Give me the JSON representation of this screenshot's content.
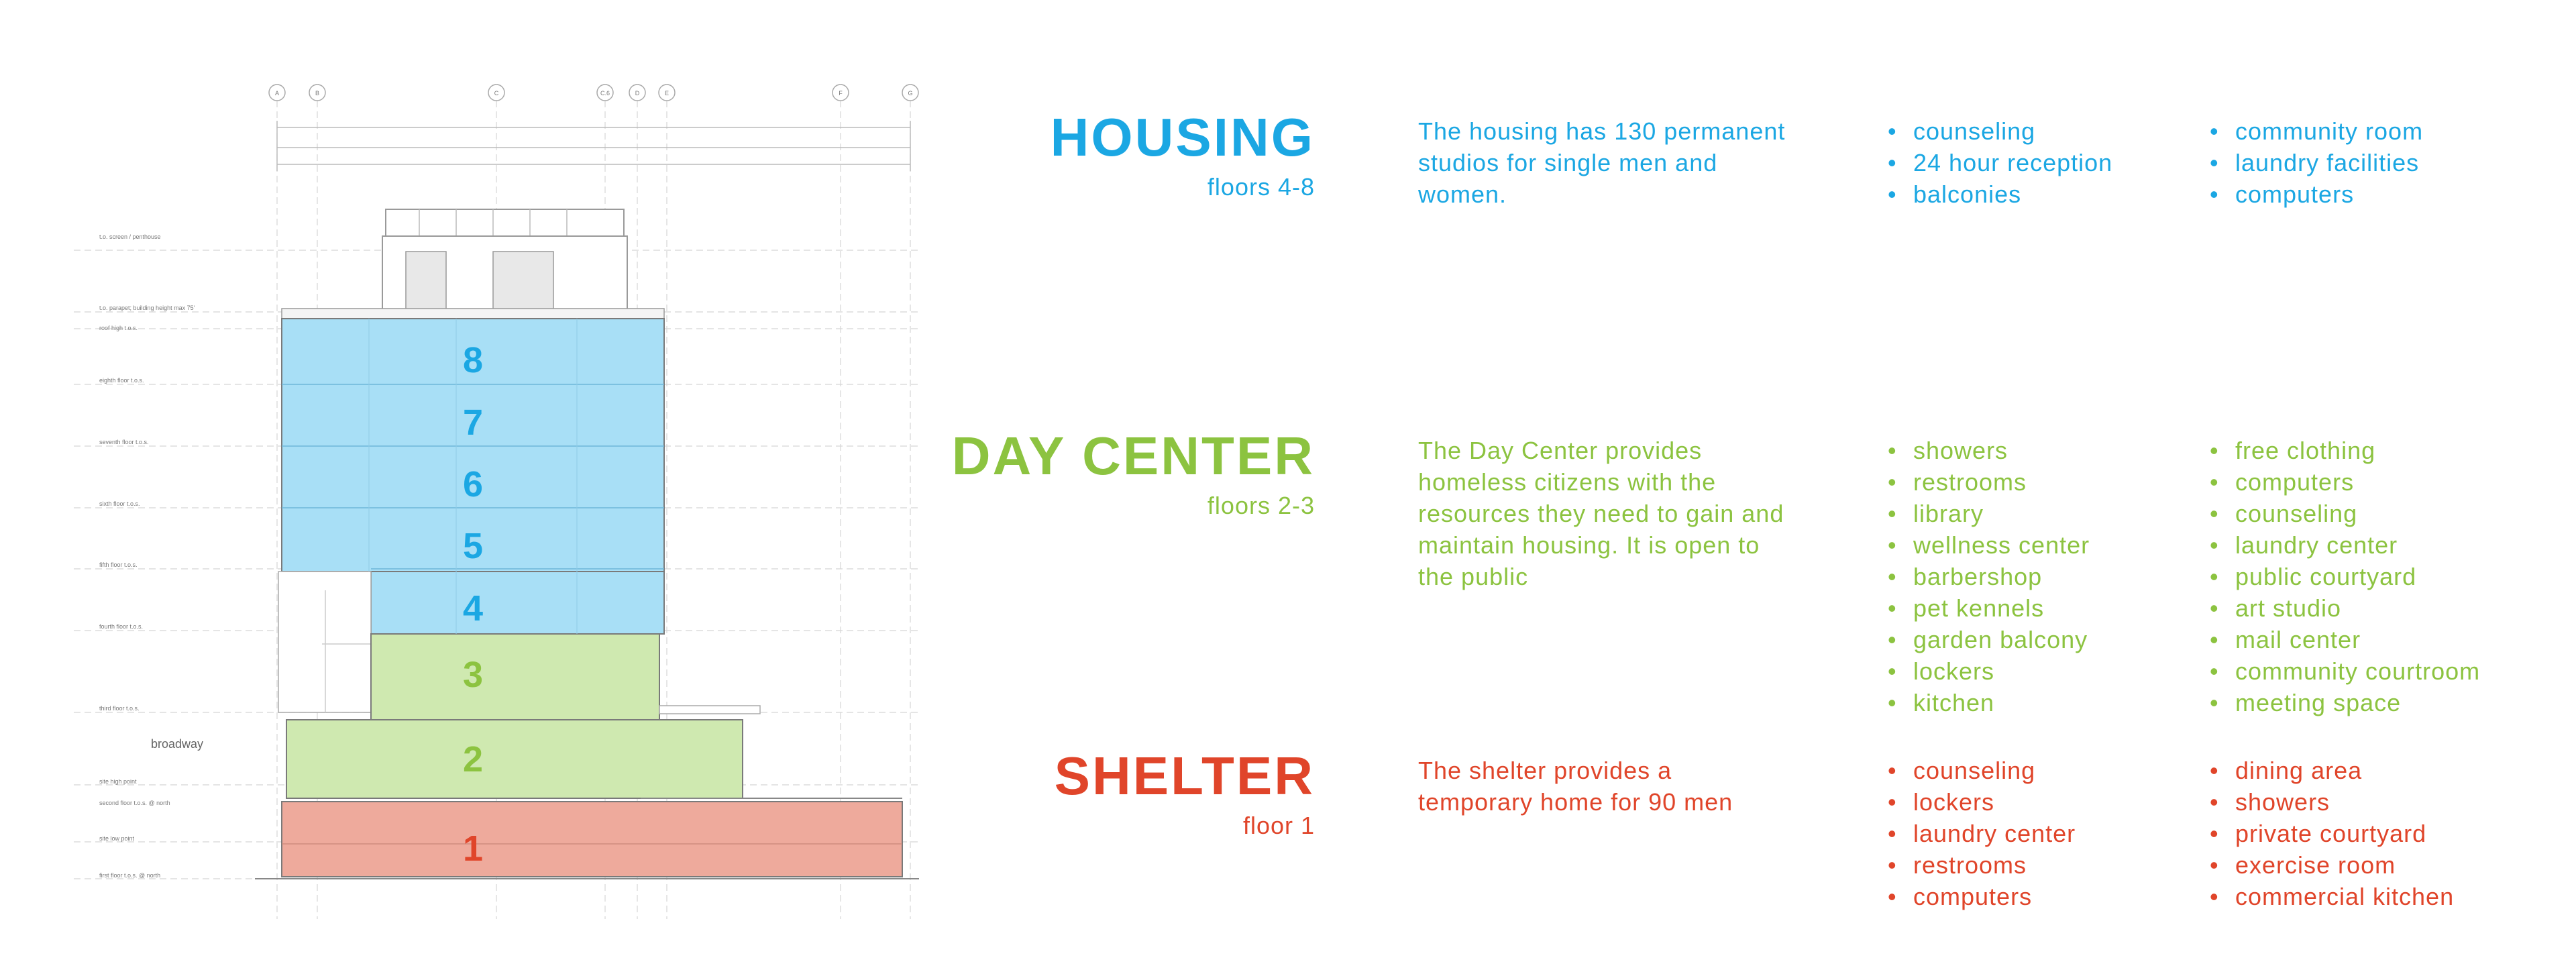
{
  "drawing": {
    "floors": [
      {
        "number": "8",
        "program": "housing"
      },
      {
        "number": "7",
        "program": "housing"
      },
      {
        "number": "6",
        "program": "housing"
      },
      {
        "number": "5",
        "program": "housing"
      },
      {
        "number": "4",
        "program": "housing"
      },
      {
        "number": "3",
        "program": "day_center"
      },
      {
        "number": "2",
        "program": "day_center"
      },
      {
        "number": "1",
        "program": "shelter"
      }
    ],
    "street_label": "broadway",
    "axis_labels": [
      "A",
      "B",
      "C",
      "C.6",
      "D",
      "E",
      "F",
      "G"
    ],
    "level_labels": [
      "t.o. screen / penthouse",
      "t.o. parapet; building height max 75'",
      "roof high t.o.s.",
      "eighth floor t.o.s.",
      "seventh floor t.o.s.",
      "sixth floor t.o.s.",
      "fifth floor t.o.s.",
      "fourth floor t.o.s.",
      "third floor t.o.s.",
      "site high point",
      "second floor t.o.s. @ north",
      "site low point",
      "first floor t.o.s. @ north"
    ]
  },
  "colors": {
    "housing": "#1ba7e3",
    "day_center": "#8cc340",
    "shelter": "#e0452a",
    "housing_fill": "#a8dff6",
    "day_center_fill": "#cfe9b0",
    "shelter_fill": "#eeaa9c"
  },
  "sections": {
    "housing": {
      "title": "HOUSING",
      "floors": "floors 4-8",
      "description": "The housing has 130 permanent studios for single men and women.",
      "amenities_col1": [
        "counseling",
        "24 hour reception",
        "balconies"
      ],
      "amenities_col2": [
        "community room",
        "laundry facilities",
        "computers"
      ]
    },
    "day_center": {
      "title": "DAY CENTER",
      "floors": "floors 2-3",
      "description": "The Day Center provides homeless citizens with the resources they need to gain and maintain housing.  It is open to the public",
      "amenities_col1": [
        "showers",
        "restrooms",
        "library",
        "wellness center",
        "barbershop",
        "pet kennels",
        "garden balcony",
        "lockers",
        "kitchen"
      ],
      "amenities_col2": [
        "free clothing",
        "computers",
        "counseling",
        "laundry center",
        "public courtyard",
        "art studio",
        "mail center",
        "community courtroom",
        "meeting space"
      ]
    },
    "shelter": {
      "title": "SHELTER",
      "floors": "floor 1",
      "description": "The shelter provides a temporary home for 90 men",
      "amenities_col1": [
        "counseling",
        "lockers",
        "laundry center",
        "restrooms",
        "computers"
      ],
      "amenities_col2": [
        "dining area",
        "showers",
        "private courtyard",
        "exercise room",
        "commercial kitchen"
      ]
    }
  }
}
